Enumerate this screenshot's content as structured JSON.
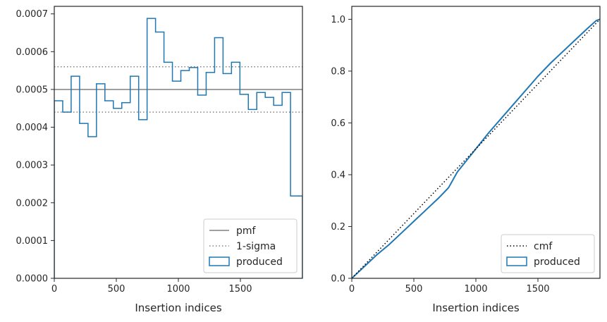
{
  "colors": {
    "hist": "#1f77b4",
    "pmf": "#808080",
    "sigma": "#808080",
    "cmf": "#000000",
    "axes": "#262626"
  },
  "chart_data": [
    {
      "type": "histogram-step",
      "xlabel": "Insertion indices",
      "ylabel": "",
      "xlim": [
        0,
        2000
      ],
      "ylim": [
        0,
        0.00072
      ],
      "xticks": [
        0,
        500,
        1000,
        1500
      ],
      "xtick_labels": [
        "0",
        "500",
        "1000",
        "1500"
      ],
      "yticks": [
        0,
        0.0001,
        0.0002,
        0.0003,
        0.0004,
        0.0005,
        0.0006,
        0.0007
      ],
      "ytick_labels": [
        "0.0000",
        "0.0001",
        "0.0002",
        "0.0003",
        "0.0004",
        "0.0005",
        "0.0006",
        "0.0007"
      ],
      "bin_edges": [
        0,
        68,
        136,
        204,
        272,
        340,
        408,
        476,
        544,
        612,
        680,
        748,
        816,
        884,
        952,
        1020,
        1088,
        1156,
        1224,
        1292,
        1360,
        1428,
        1496,
        1564,
        1632,
        1700,
        1768,
        1836,
        1904,
        1972,
        2000
      ],
      "values": [
        0.00047,
        0.00044,
        0.000535,
        0.00041,
        0.000375,
        0.000515,
        0.00047,
        0.00045,
        0.000465,
        0.000535,
        0.00042,
        0.000688,
        0.000652,
        0.000572,
        0.000522,
        0.00055,
        0.000558,
        0.000485,
        0.000545,
        0.000637,
        0.000542,
        0.000572,
        0.000487,
        0.000447,
        0.000492,
        0.000479,
        0.000458,
        0.000492,
        0.000218,
        0.000218
      ],
      "pmf": 0.0005,
      "sigma_lower": 0.00044,
      "sigma_upper": 0.00056,
      "legend": {
        "placement": "lower-right",
        "entries": [
          "pmf",
          "1-sigma",
          "produced"
        ]
      }
    },
    {
      "type": "line",
      "xlabel": "Insertion indices",
      "ylabel": "",
      "xlim": [
        0,
        2000
      ],
      "ylim": [
        0,
        1.05
      ],
      "xticks": [
        0,
        500,
        1000,
        1500
      ],
      "xtick_labels": [
        "0",
        "500",
        "1000",
        "1500"
      ],
      "yticks": [
        0,
        0.2,
        0.4,
        0.6,
        0.8,
        1.0
      ],
      "ytick_labels": [
        "0.0",
        "0.2",
        "0.4",
        "0.6",
        "0.8",
        "1.0"
      ],
      "cmf": {
        "x": [
          0,
          2000
        ],
        "y": [
          0,
          1.0
        ]
      },
      "produced": {
        "x": [
          0,
          100,
          200,
          300,
          400,
          500,
          600,
          700,
          780,
          850,
          950,
          1000,
          1100,
          1200,
          1300,
          1400,
          1500,
          1600,
          1700,
          1800,
          1900,
          1970,
          2000
        ],
        "y": [
          0,
          0.045,
          0.09,
          0.13,
          0.175,
          0.22,
          0.265,
          0.31,
          0.35,
          0.41,
          0.47,
          0.5,
          0.56,
          0.615,
          0.67,
          0.725,
          0.78,
          0.83,
          0.875,
          0.92,
          0.965,
          0.995,
          1.0
        ]
      },
      "legend": {
        "placement": "lower-right",
        "entries": [
          "cmf",
          "produced"
        ]
      }
    }
  ]
}
